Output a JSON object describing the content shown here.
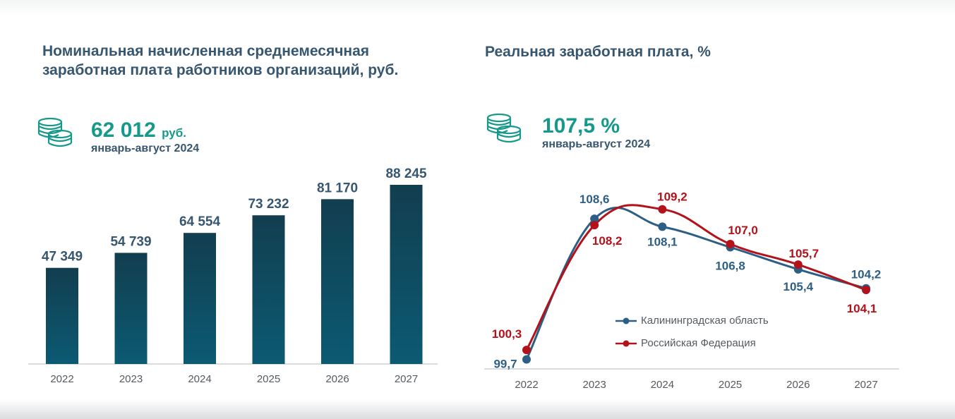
{
  "left": {
    "title": "Номинальная начисленная среднемесячная заработная плата работников организаций, руб.",
    "kpi": {
      "value": "62 012",
      "unit": "руб.",
      "period": "январь-август 2024",
      "icon": "coins-icon"
    }
  },
  "right": {
    "title": "Реальная заработная плата, %",
    "kpi": {
      "value": "107,5 %",
      "period": "январь-август 2024",
      "icon": "coins-icon"
    }
  },
  "colors": {
    "title": "#37566f",
    "accent": "#16998a",
    "bar_top": "#123e4f",
    "bar_bottom": "#0b5a73",
    "kaliningrad": "#2d5f86",
    "russia": "#b3121b"
  },
  "chart_data": [
    {
      "type": "bar",
      "categories": [
        "2022",
        "2023",
        "2024",
        "2025",
        "2026",
        "2027"
      ],
      "values": [
        47349,
        54739,
        64554,
        73232,
        81170,
        88245
      ],
      "value_labels": [
        "47 349",
        "54 739",
        "64 554",
        "73 232",
        "81 170",
        "88 245"
      ],
      "ylim": [
        0,
        88245
      ],
      "grid": false,
      "legend": "none"
    },
    {
      "type": "line",
      "x": [
        "2022",
        "2023",
        "2024",
        "2025",
        "2026",
        "2027"
      ],
      "series": [
        {
          "name": "Калининградская область",
          "color": "#2d5f86",
          "values": [
            99.7,
            108.6,
            108.1,
            106.8,
            105.4,
            104.2
          ],
          "labels": [
            "99,7",
            "108,6",
            "108,1",
            "106,8",
            "105,4",
            "104,2"
          ]
        },
        {
          "name": "Российская Федерация",
          "color": "#b3121b",
          "values": [
            100.3,
            108.2,
            109.2,
            107.0,
            105.7,
            104.1
          ],
          "labels": [
            "100,3",
            "108,2",
            "109,2",
            "107,0",
            "105,7",
            "104,1"
          ]
        }
      ],
      "ylim": [
        99.5,
        109.5
      ],
      "grid": false,
      "legend": "bottom-center"
    }
  ]
}
